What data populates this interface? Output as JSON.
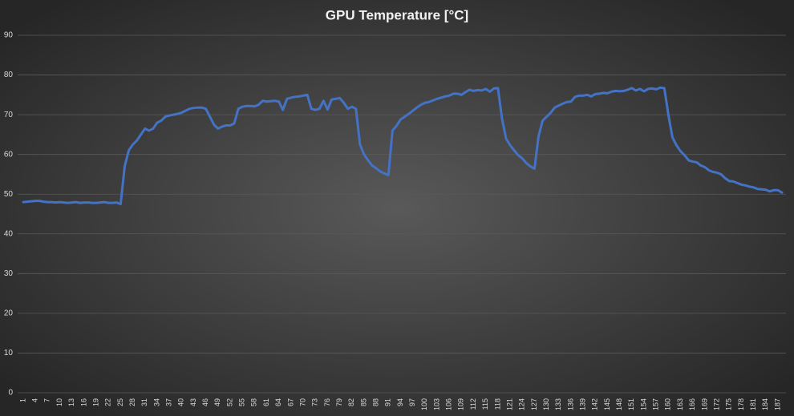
{
  "chart_data": {
    "type": "line",
    "title": "GPU Temperature [°C]",
    "categories": [
      "1",
      null,
      null,
      "4",
      null,
      null,
      "7",
      null,
      null,
      "10",
      null,
      null,
      "13",
      null,
      null,
      "16",
      null,
      null,
      "19",
      null,
      null,
      "22",
      null,
      null,
      "25",
      null,
      null,
      "28",
      null,
      null,
      "31",
      null,
      null,
      "34",
      null,
      null,
      "37",
      null,
      null,
      "40",
      null,
      null,
      "43",
      null,
      null,
      "46",
      null,
      null,
      "49",
      null,
      null,
      "52",
      null,
      null,
      "55",
      null,
      null,
      "58",
      null,
      null,
      "61",
      null,
      null,
      "64",
      null,
      null,
      "67",
      null,
      null,
      "70",
      null,
      null,
      "73",
      null,
      null,
      "76",
      null,
      null,
      "79",
      null,
      null,
      "82",
      null,
      null,
      "85",
      null,
      null,
      "88",
      null,
      null,
      "91",
      null,
      null,
      "94",
      null,
      null,
      "97",
      null,
      null,
      "100",
      null,
      null,
      "103",
      null,
      null,
      "106",
      null,
      null,
      "109",
      null,
      null,
      "112",
      null,
      null,
      "115",
      null,
      null,
      "118",
      null,
      null,
      "121",
      null,
      null,
      "124",
      null,
      null,
      "127",
      null,
      null,
      "130",
      null,
      null,
      "133",
      null,
      null,
      "136",
      null,
      null,
      "139",
      null,
      null,
      "142",
      null,
      null,
      "145",
      null,
      null,
      "148",
      null,
      null,
      "151",
      null,
      null,
      "154",
      null,
      null,
      "157",
      null,
      null,
      "160",
      null,
      null,
      "163",
      null,
      null,
      "166",
      null,
      null,
      "169",
      null,
      null,
      "172",
      null,
      null,
      "175",
      null,
      null,
      "178",
      null,
      null,
      "181",
      null,
      null,
      "184",
      null,
      null,
      "187",
      null
    ],
    "values": [
      48,
      48.1,
      48.2,
      48.3,
      48.3,
      48.1,
      48,
      48,
      47.9,
      48,
      47.9,
      47.8,
      47.9,
      48,
      47.8,
      47.9,
      47.9,
      47.8,
      47.8,
      47.9,
      48,
      47.8,
      47.8,
      47.9,
      47.5,
      57,
      61,
      62.5,
      63.5,
      65,
      66.5,
      66,
      66.5,
      68,
      68.5,
      69.5,
      69.8,
      70,
      70.2,
      70.5,
      71,
      71.5,
      71.7,
      71.8,
      71.8,
      71.5,
      69.5,
      67.5,
      66.5,
      67,
      67.3,
      67.3,
      67.8,
      71.5,
      72,
      72.2,
      72.2,
      72.1,
      72.5,
      73.5,
      73.3,
      73.4,
      73.5,
      73.3,
      71.2,
      74,
      74.3,
      74.5,
      74.6,
      74.8,
      75,
      71.5,
      71.2,
      71.5,
      73.5,
      71.3,
      73.8,
      74,
      74.2,
      73,
      71.5,
      72,
      71.5,
      62.5,
      60,
      58.5,
      57.2,
      56.5,
      55.7,
      55.2,
      54.8,
      66,
      67.2,
      68.8,
      69.5,
      70.2,
      71,
      71.8,
      72.5,
      73,
      73.2,
      73.6,
      74,
      74.3,
      74.6,
      74.8,
      75.3,
      75.3,
      75,
      75.7,
      76.3,
      76,
      76.2,
      76.1,
      76.5,
      75.8,
      76.6,
      76.7,
      69,
      64,
      62.3,
      61,
      59.8,
      59,
      57.8,
      57,
      56.4,
      64.5,
      68.5,
      69.5,
      70.5,
      71.8,
      72.3,
      72.8,
      73.2,
      73.3,
      74.5,
      74.8,
      74.8,
      75,
      74.6,
      75.2,
      75.3,
      75.5,
      75.4,
      75.8,
      76,
      75.9,
      76,
      76.3,
      76.7,
      76.1,
      76.5,
      75.9,
      76.5,
      76.6,
      76.4,
      76.8,
      76.7,
      70,
      64.3,
      62.3,
      60.8,
      59.8,
      58.5,
      58.2,
      58,
      57.2,
      56.8,
      56,
      55.6,
      55.4,
      55,
      54,
      53.3,
      53.2,
      52.8,
      52.4,
      52.2,
      51.9,
      51.7,
      51.3,
      51.2,
      51.1,
      50.7,
      51,
      51,
      50.4
    ],
    "color": "#4472c4",
    "ylim": [
      0,
      90
    ],
    "yticks": [
      0,
      10,
      20,
      30,
      40,
      50,
      60,
      70,
      80,
      90
    ],
    "grid": true
  }
}
